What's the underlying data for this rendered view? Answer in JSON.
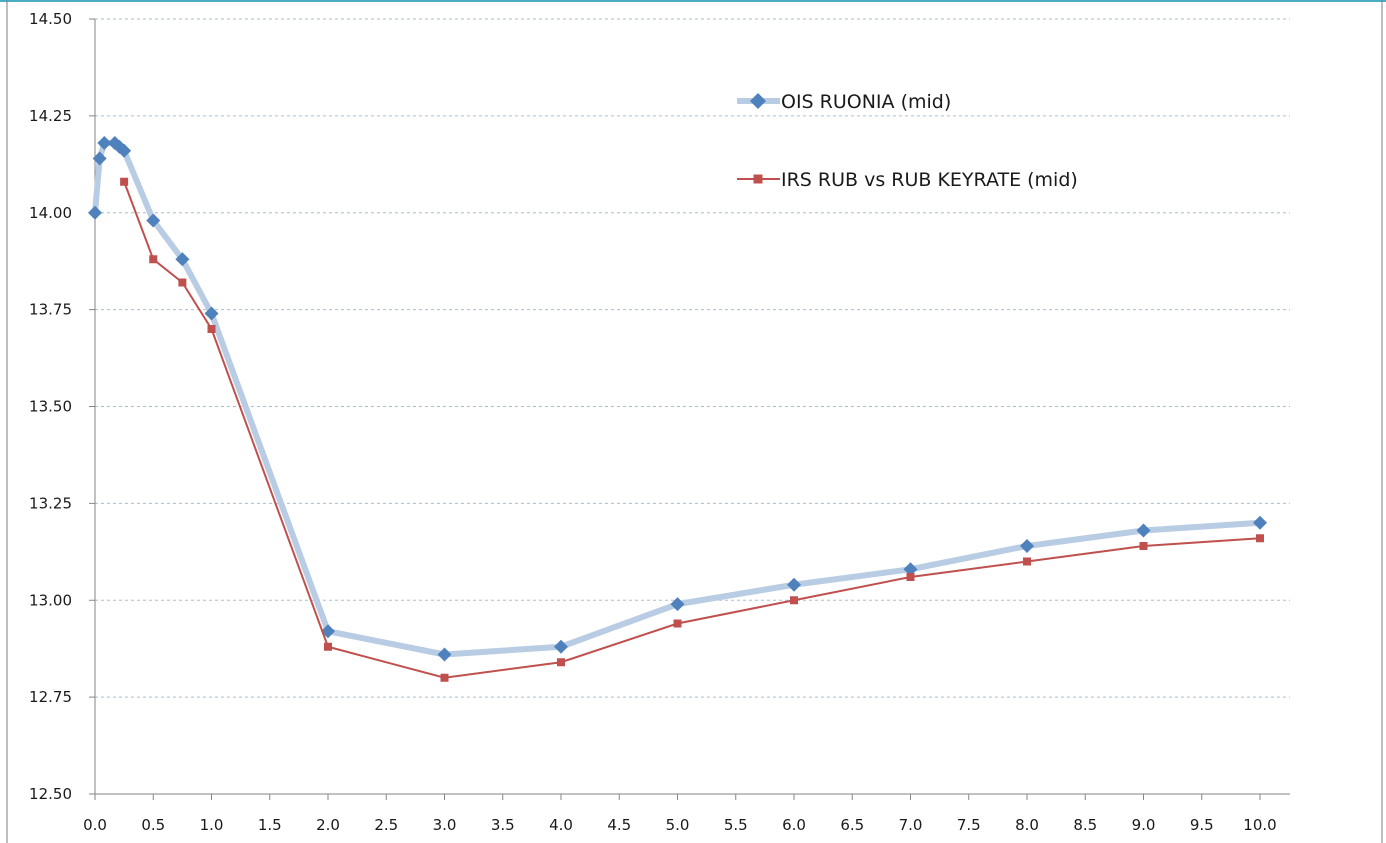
{
  "chart_data": {
    "type": "line",
    "title": "",
    "xlabel": "",
    "ylabel": "",
    "xlim": [
      0,
      10
    ],
    "ylim": [
      12.5,
      14.5
    ],
    "x_ticks": [
      "0.0",
      "0.5",
      "1.0",
      "1.5",
      "2.0",
      "2.5",
      "3.0",
      "3.5",
      "4.0",
      "4.5",
      "5.0",
      "5.5",
      "6.0",
      "6.5",
      "7.0",
      "7.5",
      "8.0",
      "8.5",
      "9.0",
      "9.5",
      "10.0"
    ],
    "y_ticks": [
      "12.50",
      "12.75",
      "13.00",
      "13.25",
      "13.50",
      "13.75",
      "14.00",
      "14.25",
      "14.50"
    ],
    "grid": "horizontal dashed",
    "legend_position": "top-right",
    "series": [
      {
        "name": "OIS RUONIA (mid)",
        "line_color": "#b8cce4",
        "marker_color": "#4f81bd",
        "marker": "diamond",
        "x": [
          0.0,
          0.04,
          0.08,
          0.17,
          0.21,
          0.25,
          0.5,
          0.75,
          1.0,
          2.0,
          3.0,
          4.0,
          5.0,
          6.0,
          7.0,
          8.0,
          9.0,
          10.0
        ],
        "y": [
          14.0,
          14.14,
          14.18,
          14.18,
          14.17,
          14.16,
          13.98,
          13.88,
          13.74,
          12.92,
          12.86,
          12.88,
          12.99,
          13.04,
          13.08,
          13.14,
          13.18,
          13.2
        ]
      },
      {
        "name": "IRS RUB vs RUB KEYRATE (mid)",
        "line_color": "#c0504d",
        "marker_color": "#c0504d",
        "marker": "square",
        "x": [
          0.25,
          0.5,
          0.75,
          1.0,
          2.0,
          3.0,
          4.0,
          5.0,
          6.0,
          7.0,
          8.0,
          9.0,
          10.0
        ],
        "y": [
          14.08,
          13.88,
          13.82,
          13.7,
          12.88,
          12.8,
          12.84,
          12.94,
          13.0,
          13.06,
          13.1,
          13.14,
          13.16
        ]
      }
    ]
  },
  "colors": {
    "gridline": "#a6bfd6",
    "axis": "#868686",
    "frame_border": "#7f7f7f",
    "top_border": "#4bacc6"
  }
}
